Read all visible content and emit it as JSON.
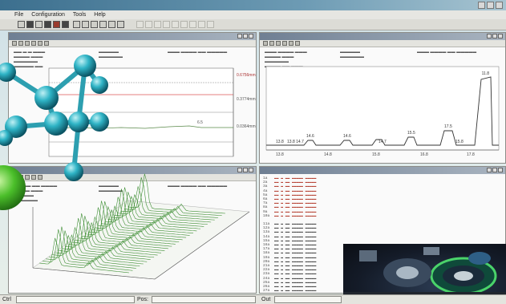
{
  "app": {
    "title": ""
  },
  "menu": {
    "items": [
      "File",
      "Configuration",
      "Tools",
      "Help"
    ]
  },
  "toolbar": {
    "icons": [
      "open-icon",
      "save-icon",
      "print-icon",
      "chart-icon",
      "table-icon",
      "settings-icon",
      "help-icon"
    ]
  },
  "panels": {
    "trend": {
      "title": "",
      "y_labels": [
        "0.6756mm",
        "0.3774mm",
        "0.0364mm"
      ],
      "mid_value": "6.5"
    },
    "profile": {
      "title": "",
      "peak_label": "11.8",
      "peak_labels": [
        "14.6",
        "14.6",
        "15.5",
        "17.5"
      ],
      "base_labels": [
        "13.8",
        "13.8 14.7",
        "14.7",
        "15.8"
      ],
      "x_ticks": [
        "13.8",
        "14.8",
        "15.8",
        "16.8",
        "17.8"
      ]
    },
    "waterfall": {
      "title": ""
    },
    "log": {
      "title": "",
      "row_ids": [
        "1a",
        "2a",
        "3a",
        "4a",
        "5a",
        "6a",
        "7a",
        "8a",
        "9a",
        "10a",
        "",
        "11a",
        "12a",
        "13a",
        "14a",
        "15a",
        "16a",
        "17a",
        "18a",
        "19a",
        "20a",
        "21a",
        "22a",
        "23a",
        "24a",
        "25a",
        "26a",
        "27a"
      ]
    }
  },
  "statusbar": {
    "left_label": "Ctrl",
    "mid_label": "Pos:",
    "right_label": "Out"
  }
}
